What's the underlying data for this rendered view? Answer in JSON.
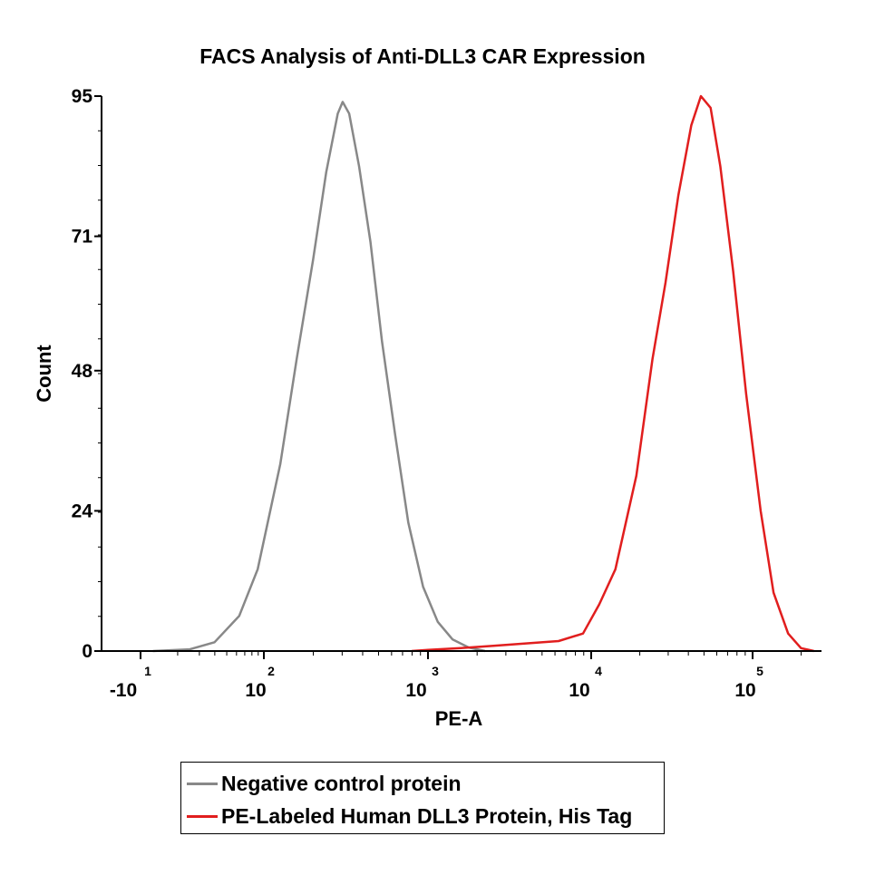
{
  "chart_data": {
    "type": "line",
    "title": "FACS Analysis of Anti-DLL3 CAR Expression",
    "xlabel": "PE-A",
    "ylabel": "Count",
    "x_scale": "biexponential",
    "x_ticks": [
      {
        "base": "-10",
        "exponent": "1"
      },
      {
        "base": "10",
        "exponent": "2"
      },
      {
        "base": "10",
        "exponent": "3"
      },
      {
        "base": "10",
        "exponent": "4"
      },
      {
        "base": "10",
        "exponent": "5"
      }
    ],
    "y_ticks": [
      "0",
      "24",
      "48",
      "71",
      "95"
    ],
    "ylim": [
      0,
      95
    ],
    "legend_position": "bottom",
    "series": [
      {
        "name": "Negative control protein",
        "color": "#888888",
        "points": [
          [
            1.1,
            0
          ],
          [
            1.4,
            0.3
          ],
          [
            1.6,
            1.5
          ],
          [
            1.8,
            6
          ],
          [
            1.95,
            14
          ],
          [
            2.1,
            32
          ],
          [
            2.2,
            50
          ],
          [
            2.3,
            67
          ],
          [
            2.38,
            82
          ],
          [
            2.45,
            92
          ],
          [
            2.48,
            94
          ],
          [
            2.52,
            92
          ],
          [
            2.58,
            83
          ],
          [
            2.65,
            70
          ],
          [
            2.72,
            53
          ],
          [
            2.8,
            37
          ],
          [
            2.88,
            22
          ],
          [
            2.97,
            11
          ],
          [
            3.06,
            5
          ],
          [
            3.15,
            2
          ],
          [
            3.25,
            0.6
          ],
          [
            3.35,
            0
          ]
        ]
      },
      {
        "name": "PE-Labeled Human DLL3 Protein, His Tag",
        "color": "#e11e1e",
        "points": [
          [
            2.9,
            0
          ],
          [
            3.0,
            0.2
          ],
          [
            3.2,
            0.5
          ],
          [
            3.4,
            0.9
          ],
          [
            3.6,
            1.3
          ],
          [
            3.8,
            1.7
          ],
          [
            3.95,
            3
          ],
          [
            4.05,
            8
          ],
          [
            4.15,
            14
          ],
          [
            4.28,
            30
          ],
          [
            4.38,
            50
          ],
          [
            4.46,
            63
          ],
          [
            4.54,
            78
          ],
          [
            4.62,
            90
          ],
          [
            4.68,
            95
          ],
          [
            4.74,
            93
          ],
          [
            4.8,
            83
          ],
          [
            4.88,
            65
          ],
          [
            4.96,
            44
          ],
          [
            5.05,
            24
          ],
          [
            5.13,
            10
          ],
          [
            5.22,
            3
          ],
          [
            5.3,
            0.5
          ],
          [
            5.38,
            0
          ]
        ]
      }
    ]
  }
}
